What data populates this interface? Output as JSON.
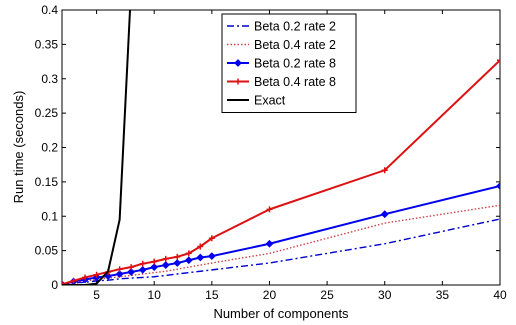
{
  "chart_data": {
    "type": "line",
    "title": "",
    "xlabel": "Number of components",
    "ylabel": "Run time (seconds)",
    "xlim": [
      2,
      40
    ],
    "ylim": [
      0,
      0.4
    ],
    "xticks": [
      5,
      10,
      15,
      20,
      25,
      30,
      35,
      40
    ],
    "yticks": [
      0,
      0.05,
      0.1,
      0.15,
      0.2,
      0.25,
      0.3,
      0.35,
      0.4
    ],
    "ytick_labels": [
      "0",
      "0.05",
      "0.1",
      "0.15",
      "0.2",
      "0.25",
      "0.3",
      "0.35",
      "0.4"
    ],
    "grid": false,
    "legend_position": "top-right",
    "series": [
      {
        "name": "Beta 0.2 rate 2",
        "color": "#0000cc",
        "line_style": "dash-dot",
        "marker": "none",
        "x": [
          2,
          3,
          4,
          5,
          6,
          7,
          8,
          9,
          10,
          11,
          12,
          13,
          14,
          15,
          20,
          30,
          40
        ],
        "y": [
          0.001,
          0.003,
          0.004,
          0.006,
          0.007,
          0.009,
          0.01,
          0.011,
          0.012,
          0.014,
          0.016,
          0.018,
          0.02,
          0.022,
          0.032,
          0.06,
          0.096
        ]
      },
      {
        "name": "Beta 0.4 rate 2",
        "color": "#cc4444",
        "line_style": "dotted",
        "marker": "none",
        "x": [
          2,
          3,
          4,
          5,
          6,
          7,
          8,
          9,
          10,
          11,
          12,
          13,
          14,
          15,
          20,
          30,
          40
        ],
        "y": [
          0.001,
          0.004,
          0.006,
          0.008,
          0.01,
          0.012,
          0.014,
          0.016,
          0.018,
          0.02,
          0.023,
          0.026,
          0.029,
          0.032,
          0.046,
          0.09,
          0.116
        ]
      },
      {
        "name": "Beta 0.2 rate 8",
        "color": "#0000ee",
        "line_style": "solid",
        "marker": "diamond",
        "x": [
          2,
          3,
          4,
          5,
          6,
          7,
          8,
          9,
          10,
          11,
          12,
          13,
          14,
          15,
          20,
          30,
          40
        ],
        "y": [
          0.001,
          0.005,
          0.008,
          0.011,
          0.013,
          0.016,
          0.019,
          0.022,
          0.026,
          0.029,
          0.032,
          0.036,
          0.04,
          0.042,
          0.06,
          0.103,
          0.144
        ]
      },
      {
        "name": "Beta 0.4 rate 8",
        "color": "#dd1111",
        "line_style": "solid",
        "marker": "plus",
        "x": [
          2,
          3,
          4,
          5,
          6,
          7,
          8,
          9,
          10,
          11,
          12,
          13,
          14,
          15,
          20,
          30,
          40
        ],
        "y": [
          0.001,
          0.006,
          0.011,
          0.015,
          0.019,
          0.023,
          0.026,
          0.031,
          0.034,
          0.038,
          0.041,
          0.046,
          0.056,
          0.068,
          0.11,
          0.167,
          0.327
        ]
      },
      {
        "name": "Exact",
        "color": "#000000",
        "line_style": "solid",
        "marker": "none",
        "x": [
          2,
          3,
          4,
          5,
          6,
          7,
          7.9
        ],
        "y": [
          0.0,
          0.0,
          0.0,
          0.002,
          0.02,
          0.095,
          0.4
        ]
      }
    ]
  }
}
